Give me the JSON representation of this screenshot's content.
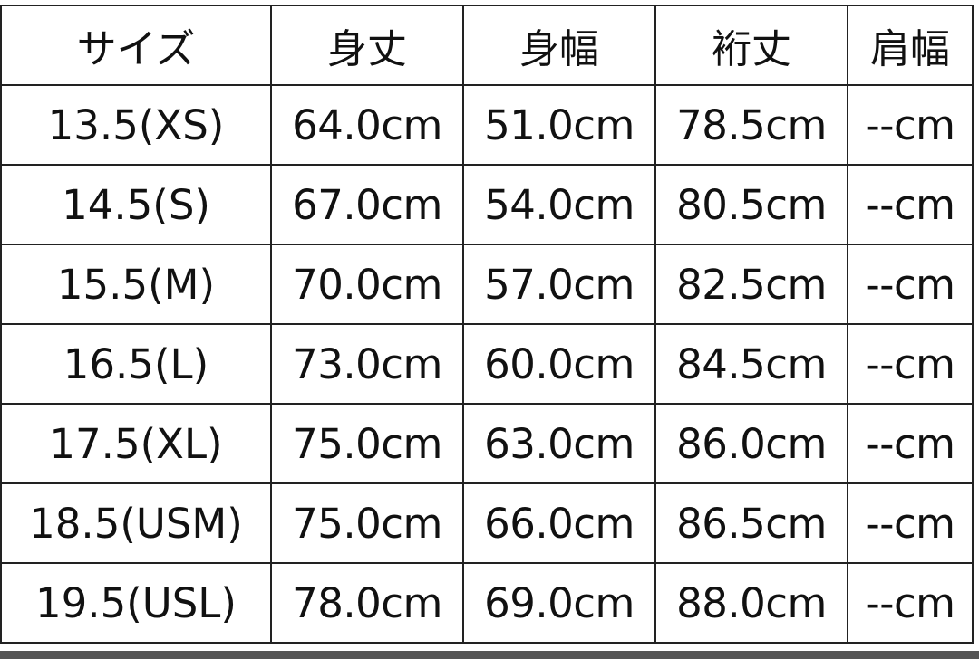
{
  "table": {
    "headers": [
      "サイズ",
      "身丈",
      "身幅",
      "裄丈",
      "肩幅"
    ],
    "rows": [
      [
        "13.5(XS)",
        "64.0cm",
        "51.0cm",
        "78.5cm",
        "--cm"
      ],
      [
        "14.5(S)",
        "67.0cm",
        "54.0cm",
        "80.5cm",
        "--cm"
      ],
      [
        "15.5(M)",
        "70.0cm",
        "57.0cm",
        "82.5cm",
        "--cm"
      ],
      [
        "16.5(L)",
        "73.0cm",
        "60.0cm",
        "84.5cm",
        "--cm"
      ],
      [
        "17.5(XL)",
        "75.0cm",
        "63.0cm",
        "86.0cm",
        "--cm"
      ],
      [
        "18.5(USM)",
        "75.0cm",
        "66.0cm",
        "86.5cm",
        "--cm"
      ],
      [
        "19.5(USL)",
        "78.0cm",
        "69.0cm",
        "88.0cm",
        "--cm"
      ]
    ]
  }
}
